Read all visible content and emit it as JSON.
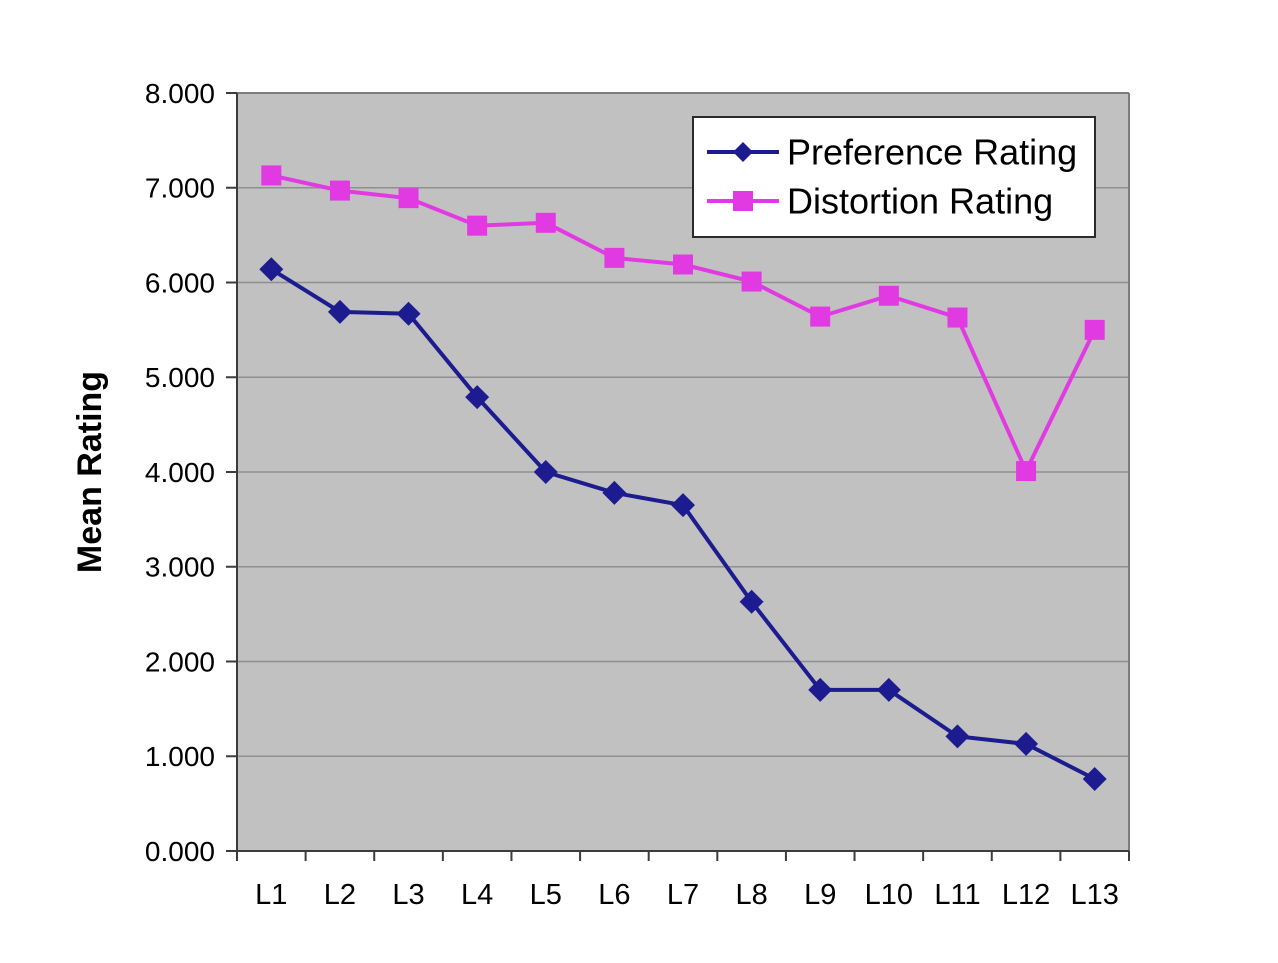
{
  "chart_data": {
    "type": "line",
    "title": "",
    "xlabel": "",
    "ylabel": "Mean Rating",
    "ylim": [
      0,
      8
    ],
    "grid": true,
    "legend_position": "top-right",
    "plot_bg_color": "#c1c1c1",
    "grid_color": "#8f8f8f",
    "axis_color": "#3c3c3c",
    "border_color": "#7c7c7c",
    "categories": [
      "L1",
      "L2",
      "L3",
      "L4",
      "L5",
      "L6",
      "L7",
      "L8",
      "L9",
      "L10",
      "L11",
      "L12",
      "L13"
    ],
    "y_tick_labels": [
      "0.000",
      "1.000",
      "2.000",
      "3.000",
      "4.000",
      "5.000",
      "6.000",
      "7.000",
      "8.000"
    ],
    "series": [
      {
        "name": "Preference Rating",
        "color": "#1c1c90",
        "marker": "diamond",
        "values": [
          6.14,
          5.69,
          5.67,
          4.79,
          4.0,
          3.78,
          3.65,
          2.63,
          1.7,
          1.7,
          1.21,
          1.13,
          0.76
        ]
      },
      {
        "name": "Distortion Rating",
        "color": "#e23ae2",
        "marker": "square",
        "values": [
          7.13,
          6.97,
          6.89,
          6.6,
          6.63,
          6.26,
          6.19,
          6.01,
          5.64,
          5.86,
          5.63,
          4.01,
          5.5
        ]
      }
    ]
  }
}
